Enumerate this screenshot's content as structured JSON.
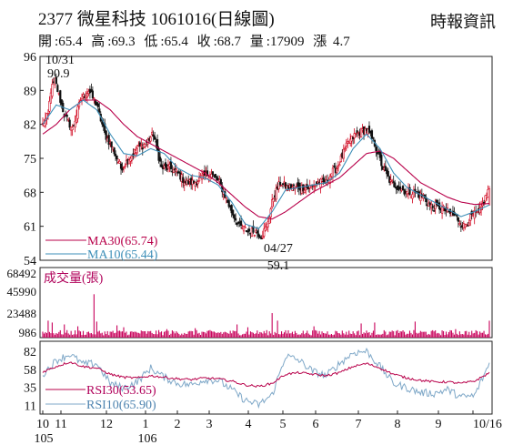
{
  "header": {
    "title": "2377  微星科技  1061016(日線圖)",
    "source": "時報資訊",
    "summary": [
      {
        "label": "開",
        "value": "65.4"
      },
      {
        "label": "高",
        "value": "69.3"
      },
      {
        "label": "低",
        "value": "65.4"
      },
      {
        "label": "收",
        "value": "68.7"
      },
      {
        "label": "量",
        "value": "17909"
      },
      {
        "label": "漲",
        "value": "4.7"
      }
    ]
  },
  "colors": {
    "up": "#d0021b",
    "down": "#111111",
    "ma30": "#b8004a",
    "ma10": "#3e8fb8",
    "rsi30": "#b8004a",
    "rsi10": "#7fa8c8",
    "volume": "#c8005a",
    "axis": "#222222",
    "legend_label": "#b0005a"
  },
  "chart_data": {
    "type": "candlestick",
    "x_axis": {
      "month_labels": [
        "10",
        "11",
        "12",
        "1",
        "2",
        "3",
        "4",
        "5",
        "6",
        "7",
        "8",
        "9",
        "10/16"
      ],
      "year_labels": [
        "105",
        "106"
      ]
    },
    "price": {
      "ylim": [
        54,
        96
      ],
      "ticks": [
        96,
        89,
        82,
        75,
        68,
        61,
        54
      ],
      "annotations": [
        {
          "text": "10/31",
          "value": 90.9,
          "date_label": "10/31"
        },
        {
          "text": "04/27",
          "value": 59.1,
          "date_label": "04/27"
        }
      ],
      "legend": [
        {
          "name": "MA30",
          "value": "65.74"
        },
        {
          "name": "MA10",
          "value": "65.44"
        }
      ],
      "segments": [
        {
          "x": [
            0,
            4,
            6,
            9,
            16,
            22,
            28,
            34,
            40,
            46,
            52,
            58,
            64,
            70,
            76,
            82,
            88,
            94,
            100,
            106,
            112,
            118,
            124,
            131,
            134,
            140,
            146,
            152,
            158,
            162,
            166,
            171,
            176,
            181,
            186,
            192,
            198,
            204,
            210,
            214,
            218,
            226,
            232,
            240
          ],
          "y": [
            82,
            84,
            89,
            91,
            84,
            81,
            87,
            89,
            86,
            80,
            77,
            73,
            75,
            77,
            78,
            80,
            73,
            73,
            72,
            70,
            70,
            71,
            72,
            70,
            68,
            64,
            61,
            60,
            60,
            59,
            61,
            67,
            70,
            69,
            69,
            69,
            69,
            70,
            70,
            72,
            73,
            78,
            80,
            81
          ]
        },
        {
          "x": [
            240,
            246,
            252,
            258,
            264,
            270,
            276,
            282,
            288,
            294,
            300,
            306,
            312,
            318,
            324,
            331
          ],
          "y": [
            81,
            78,
            73,
            70,
            69,
            68,
            68,
            67,
            65,
            65,
            64,
            63,
            61,
            63,
            64,
            69
          ]
        }
      ],
      "ma30": {
        "x": [
          0,
          10,
          20,
          30,
          40,
          50,
          60,
          70,
          80,
          90,
          100,
          110,
          120,
          130,
          140,
          150,
          160,
          170,
          180,
          190,
          200,
          210,
          220,
          230,
          240,
          250,
          260,
          270,
          280,
          290,
          300,
          310,
          320,
          331
        ],
        "y": [
          80.0,
          82.0,
          85.0,
          87.0,
          87.0,
          85.0,
          82.0,
          79.5,
          78.0,
          76.5,
          75.0,
          73.5,
          72.0,
          70.0,
          67.5,
          65.0,
          63.0,
          62.5,
          64.0,
          66.0,
          68.0,
          69.5,
          71.0,
          73.5,
          76.0,
          76.5,
          75.0,
          72.5,
          70.0,
          68.5,
          67.0,
          66.0,
          65.5,
          65.7
        ]
      },
      "ma10": {
        "x": [
          0,
          10,
          20,
          30,
          40,
          50,
          60,
          70,
          80,
          90,
          100,
          110,
          120,
          130,
          140,
          150,
          160,
          170,
          180,
          190,
          200,
          210,
          220,
          230,
          240,
          250,
          260,
          270,
          280,
          290,
          300,
          310,
          320,
          331
        ],
        "y": [
          82.0,
          86.0,
          85.0,
          87.0,
          85.0,
          80.0,
          76.0,
          75.5,
          77.0,
          76.0,
          73.0,
          71.5,
          71.0,
          69.5,
          66.0,
          61.5,
          60.5,
          64.0,
          68.5,
          69.0,
          69.5,
          70.0,
          72.0,
          77.0,
          80.0,
          77.0,
          72.0,
          69.0,
          67.5,
          66.0,
          64.5,
          63.0,
          64.0,
          65.4
        ]
      }
    },
    "volume": {
      "label": "成交量(張)",
      "ticks": [
        68492,
        45990,
        23488,
        986
      ],
      "ylim": [
        0,
        68492
      ],
      "spikes": [
        {
          "i": 4,
          "v": 18000
        },
        {
          "i": 7,
          "v": 16000
        },
        {
          "i": 16,
          "v": 14000
        },
        {
          "i": 26,
          "v": 12000
        },
        {
          "i": 38,
          "v": 46000
        },
        {
          "i": 40,
          "v": 17000
        },
        {
          "i": 55,
          "v": 13000
        },
        {
          "i": 60,
          "v": 11000
        },
        {
          "i": 92,
          "v": 9000
        },
        {
          "i": 113,
          "v": 10000
        },
        {
          "i": 144,
          "v": 14000
        },
        {
          "i": 152,
          "v": 11000
        },
        {
          "i": 170,
          "v": 26000
        },
        {
          "i": 174,
          "v": 18000
        },
        {
          "i": 201,
          "v": 12000
        },
        {
          "i": 236,
          "v": 15000
        },
        {
          "i": 246,
          "v": 16000
        },
        {
          "i": 276,
          "v": 17000
        },
        {
          "i": 306,
          "v": 9000
        },
        {
          "i": 331,
          "v": 17909
        }
      ]
    },
    "rsi": {
      "ticks": [
        82,
        58,
        35,
        11
      ],
      "ylim": [
        0,
        95
      ],
      "legend": [
        {
          "name": "RSI30",
          "value": "53.65"
        },
        {
          "name": "RSI10",
          "value": "65.90"
        }
      ],
      "rsi30": {
        "x": [
          0,
          10,
          20,
          30,
          40,
          50,
          60,
          70,
          80,
          90,
          100,
          110,
          120,
          130,
          140,
          150,
          160,
          170,
          180,
          190,
          200,
          210,
          220,
          230,
          240,
          250,
          260,
          270,
          280,
          290,
          300,
          310,
          320,
          331
        ],
        "y": [
          55,
          62,
          68,
          62,
          60,
          52,
          48,
          47,
          50,
          48,
          46,
          45,
          47,
          46,
          43,
          38,
          36,
          40,
          52,
          54,
          52,
          50,
          54,
          62,
          66,
          60,
          52,
          47,
          44,
          42,
          42,
          40,
          43,
          53.65
        ]
      },
      "rsi10": {
        "x": [
          0,
          10,
          20,
          30,
          40,
          50,
          60,
          70,
          80,
          90,
          100,
          110,
          120,
          130,
          140,
          150,
          160,
          170,
          180,
          190,
          200,
          210,
          220,
          230,
          240,
          250,
          260,
          270,
          280,
          290,
          300,
          310,
          320,
          331
        ],
        "y": [
          52,
          70,
          78,
          65,
          66,
          40,
          34,
          42,
          60,
          48,
          40,
          38,
          45,
          44,
          32,
          18,
          12,
          25,
          76,
          70,
          56,
          50,
          66,
          80,
          82,
          62,
          40,
          34,
          28,
          27,
          32,
          22,
          24,
          65.9
        ]
      }
    }
  }
}
